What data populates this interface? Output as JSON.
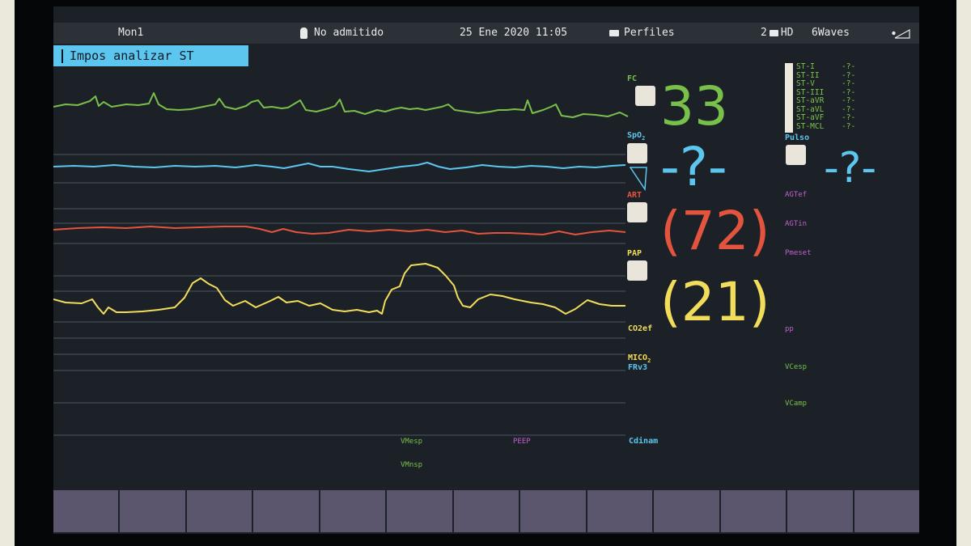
{
  "header": {
    "monitor": "Mon1",
    "patient_status": "No admitido",
    "datetime": "25 Ene 2020 11:05",
    "profiles": "Perfiles",
    "hd_count": "2",
    "hd_label": "HD",
    "waves": "6Waves"
  },
  "alarm": {
    "message": "Impos analizar ST"
  },
  "params": {
    "fc": {
      "label": "FC",
      "value": "33",
      "color": "#79c04a"
    },
    "spo2": {
      "label_main": "SpO",
      "label_sub": "2",
      "value": "-?-",
      "color": "#5cc6ef"
    },
    "art": {
      "label": "ART",
      "value": "(72)",
      "color": "#e3543e"
    },
    "pap": {
      "label": "PAP",
      "value": "(21)",
      "color": "#f2dd5b"
    },
    "pulso": {
      "label": "Pulso",
      "value": "-?-"
    },
    "co2ef": {
      "label": "CO2ef"
    },
    "mico2": {
      "label_main": "MICO",
      "label_sub": "2"
    },
    "frv3": {
      "label": "FRv3"
    },
    "cdinam": {
      "label": "Cdinam"
    }
  },
  "st_segments": [
    {
      "name": "ST-I",
      "value": "-?-"
    },
    {
      "name": "ST-II",
      "value": "-?-"
    },
    {
      "name": "ST-V",
      "value": "-?-"
    },
    {
      "name": "ST-III",
      "value": "-?-"
    },
    {
      "name": "ST-aVR",
      "value": "-?-"
    },
    {
      "name": "ST-aVL",
      "value": "-?-"
    },
    {
      "name": "ST-aVF",
      "value": "-?-"
    },
    {
      "name": "ST-MCL",
      "value": "-?-"
    }
  ],
  "right_labels": {
    "agtef": "AGTef",
    "agtin": "AGTin",
    "pmeset": "Pmeset",
    "pp": "pp",
    "vcesp": "VCesp",
    "vcamp": "VCamp"
  },
  "vent_labels": {
    "vmesp": "VMesp",
    "peep": "PEEP",
    "vmnsp": "VMnsp"
  },
  "softkeys": [
    "",
    "",
    "",
    "",
    "",
    "",
    "",
    "",
    "",
    "",
    "",
    "",
    ""
  ]
}
